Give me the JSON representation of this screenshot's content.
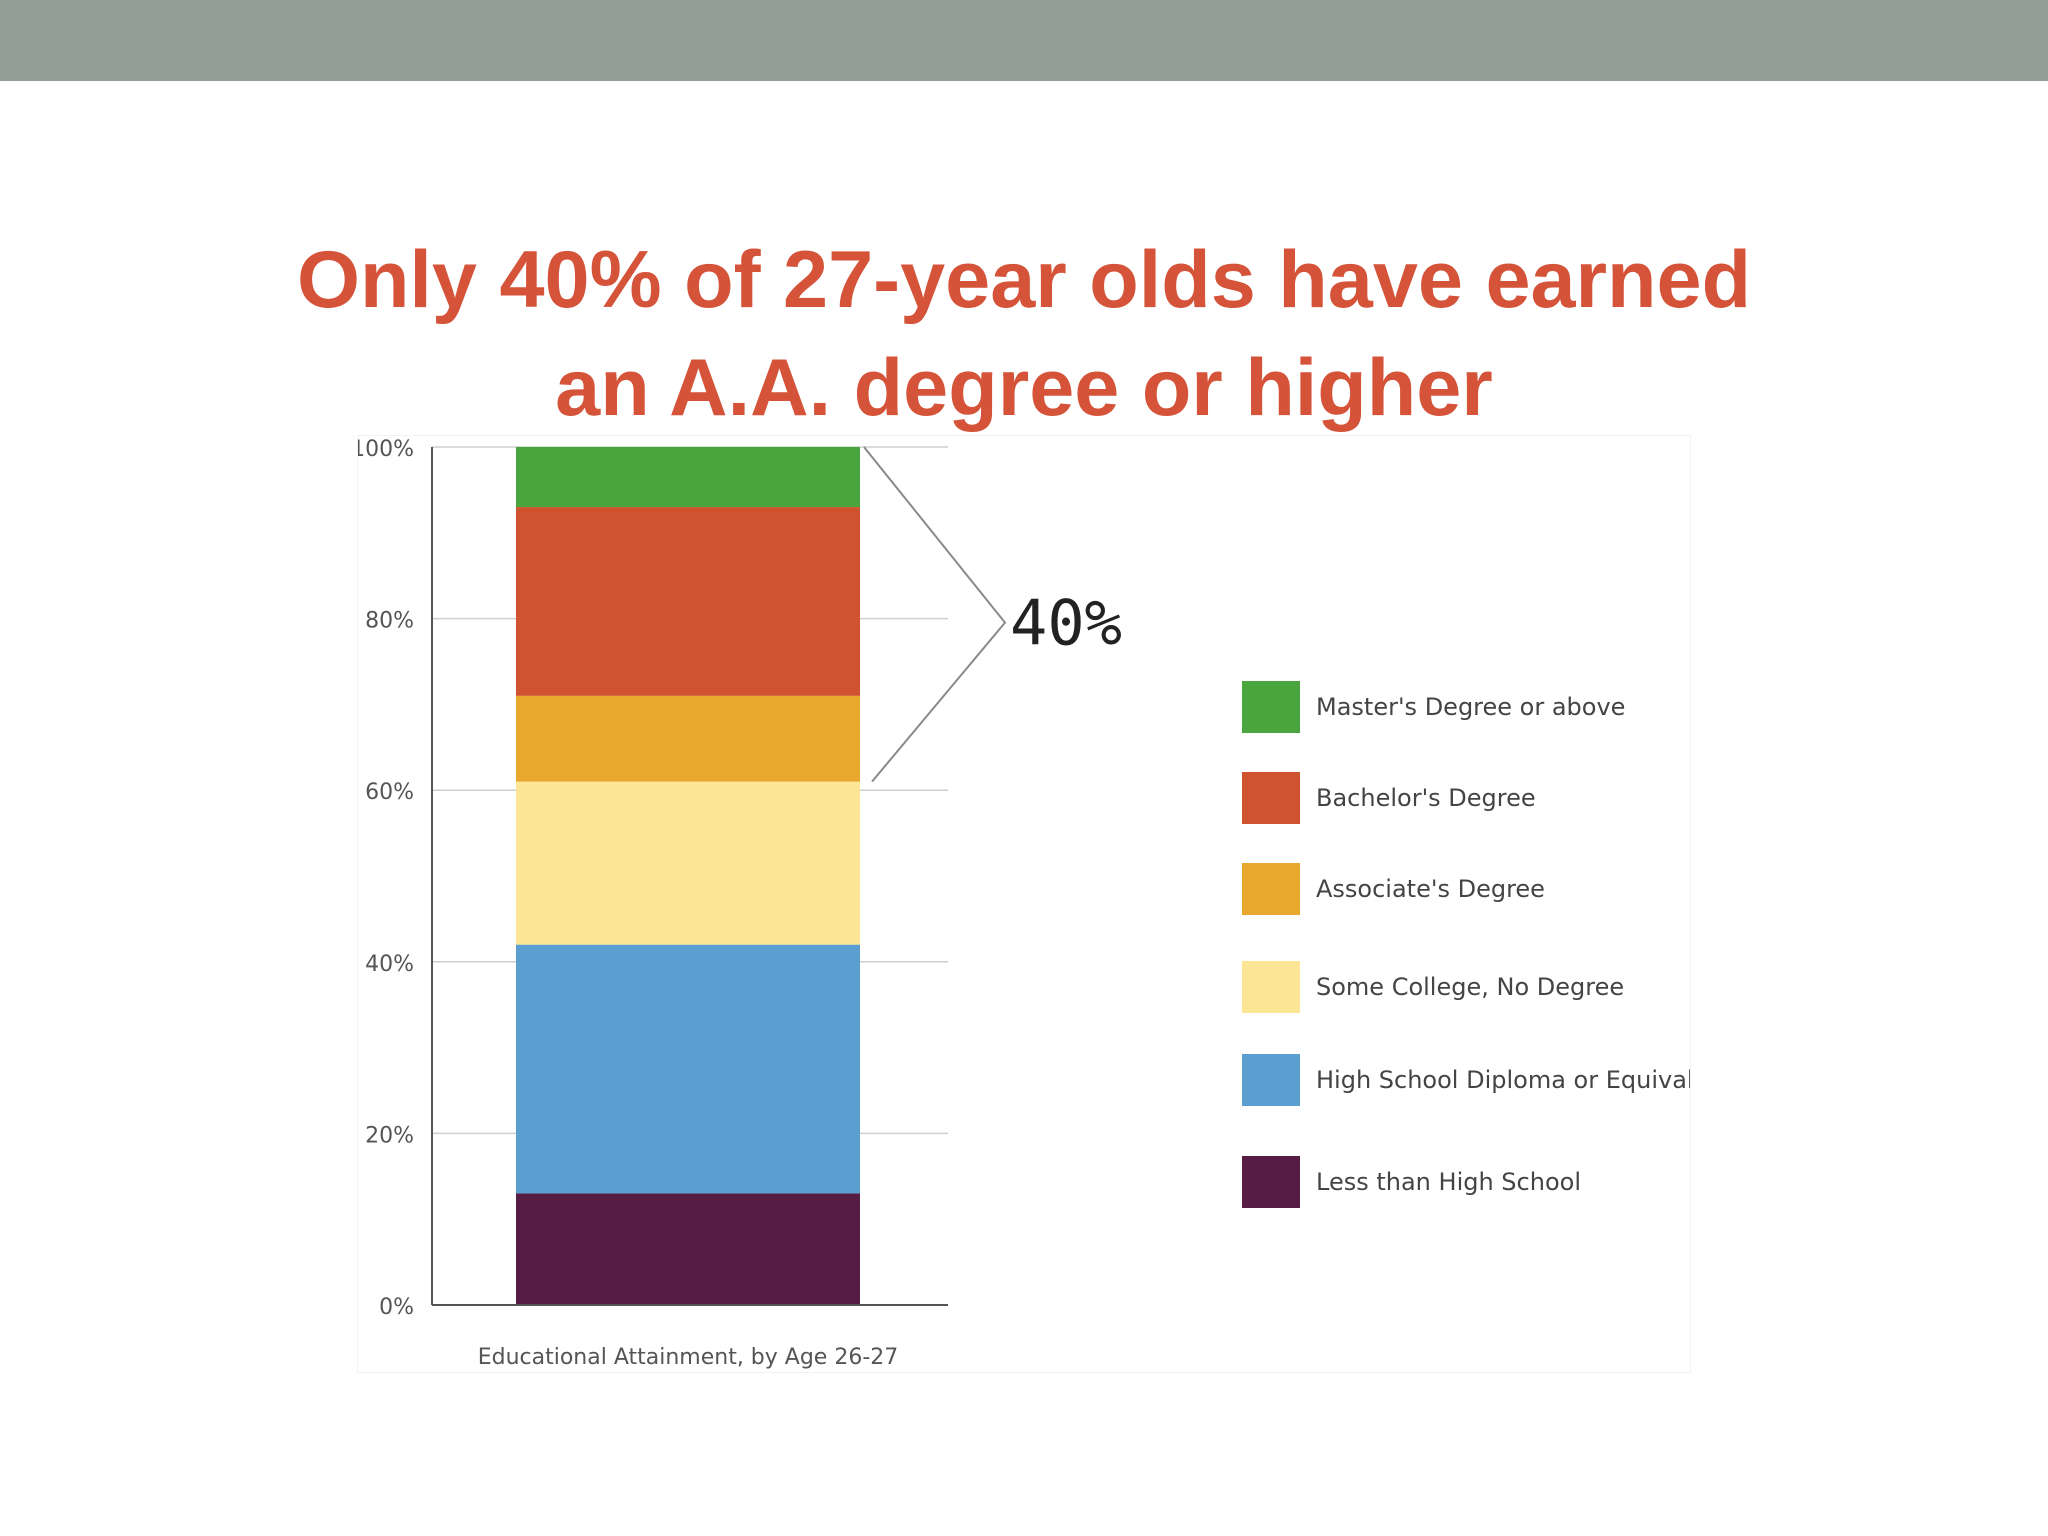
{
  "slide": {
    "title_line1": "Only 40% of 27-year olds have earned",
    "title_line2": "an A.A. degree or higher",
    "title_color": "#d45339",
    "band_color": "#919f98"
  },
  "chart_data": {
    "type": "bar",
    "stacked": true,
    "categories": [
      "Educational Attainment, by Age 26-27"
    ],
    "xlabel": "Educational Attainment, by Age 26-27",
    "ylim": [
      0,
      100
    ],
    "yticks": [
      "0%",
      "20%",
      "40%",
      "60%",
      "80%",
      "100%"
    ],
    "grid": true,
    "legend_position": "right",
    "series": [
      {
        "name": "Less than High School",
        "values": [
          13
        ],
        "color": "#561c43"
      },
      {
        "name": "High School Diploma or Equivalent",
        "values": [
          29
        ],
        "color": "#5b9fd1"
      },
      {
        "name": "Some College, No Degree",
        "values": [
          19
        ],
        "color": "#fce695"
      },
      {
        "name": "Associate's Degree",
        "values": [
          10
        ],
        "color": "#e8a82d"
      },
      {
        "name": "Bachelor's Degree",
        "values": [
          22
        ],
        "color": "#d0532f"
      },
      {
        "name": "Master's Degree or above",
        "values": [
          7
        ],
        "color": "#4aa53f"
      }
    ],
    "legend_order": [
      "Master's Degree or above",
      "Bachelor's Degree",
      "Associate's Degree",
      "Some College, No Degree",
      "High School Diploma or Equivalent",
      "Less than High School"
    ],
    "annotation": {
      "text": "40%",
      "range": [
        61,
        100
      ]
    }
  }
}
